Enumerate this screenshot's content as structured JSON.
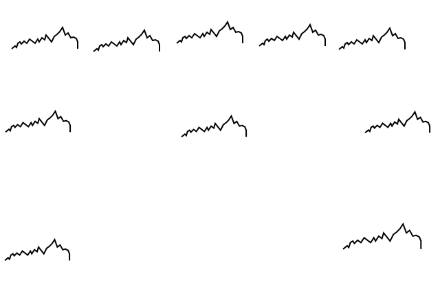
{
  "colors": {
    "background": "#ffffff",
    "stroke": "#000000"
  },
  "squiggles": [
    {
      "name": "squiggle-row1-1"
    },
    {
      "name": "squiggle-row1-2"
    },
    {
      "name": "squiggle-row1-3"
    },
    {
      "name": "squiggle-row1-4"
    },
    {
      "name": "squiggle-row1-5"
    },
    {
      "name": "squiggle-row2-1"
    },
    {
      "name": "squiggle-row2-2"
    },
    {
      "name": "squiggle-row2-3"
    },
    {
      "name": "squiggle-row3-1"
    },
    {
      "name": "squiggle-row3-2"
    }
  ]
}
